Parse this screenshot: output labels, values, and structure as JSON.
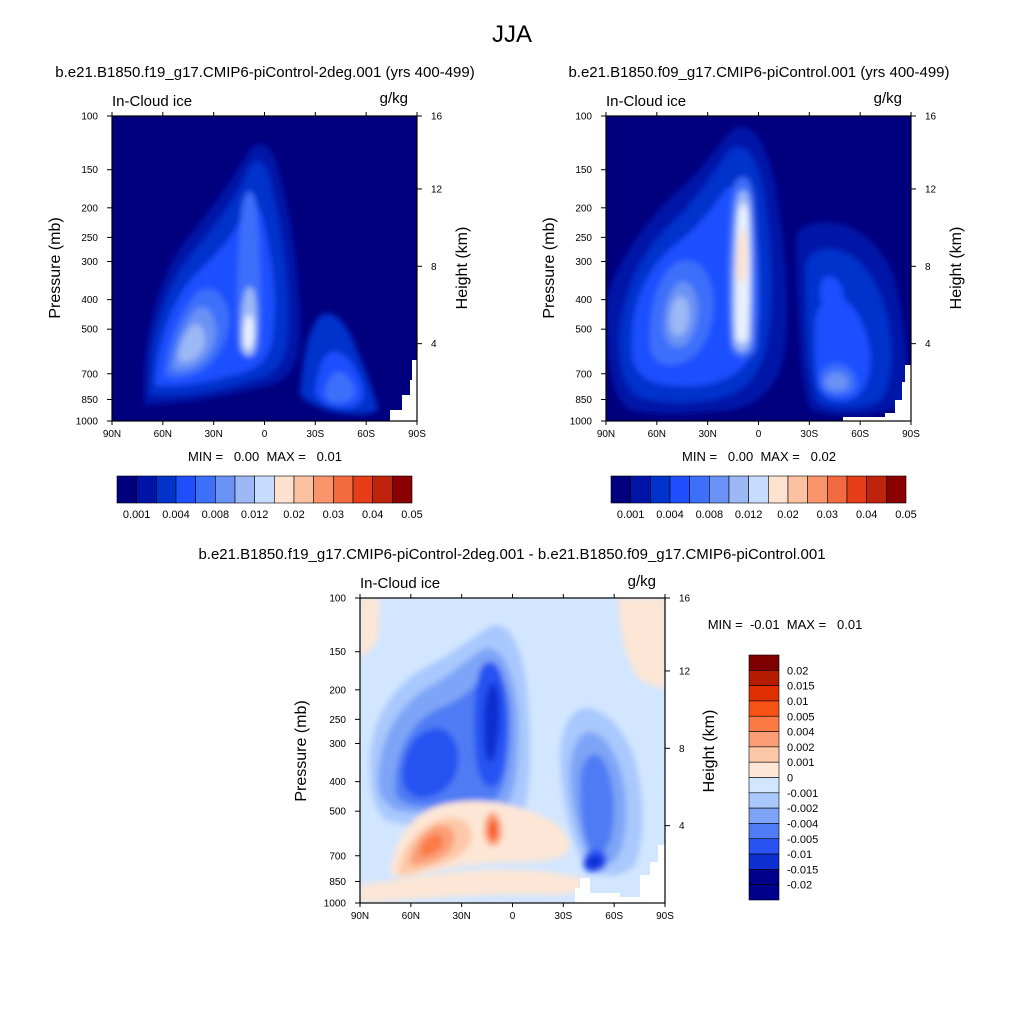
{
  "figure": {
    "title": "JJA"
  },
  "chart_data": [
    {
      "type": "heatmap",
      "title": "b.e21.B1850.f19_g17.CMIP6-piControl-2deg.001 (yrs 400-499)",
      "left_label": "In-Cloud ice",
      "units": "g/kg",
      "ylabel": "Pressure (mb)",
      "ylabel_right": "Height (km)",
      "x_ticks": [
        "90N",
        "60N",
        "30N",
        "0",
        "30S",
        "60S",
        "90S"
      ],
      "y_ticks": [
        "100",
        "150",
        "200",
        "250",
        "300",
        "400",
        "500",
        "700",
        "850",
        "1000"
      ],
      "y_right_ticks": [
        "16",
        "12",
        "8",
        "4"
      ],
      "stats": "MIN =   0.00  MAX =   0.01",
      "colorbar_labels": [
        "0.001",
        "0.004",
        "0.008",
        "0.012",
        "0.02",
        "0.03",
        "0.04",
        "0.05"
      ],
      "blobs": [
        {
          "lat": 45,
          "p": 580,
          "level": 9
        },
        {
          "lat": 12,
          "p": 500,
          "level": 10
        },
        {
          "lat": 12,
          "p": 250,
          "level": 6
        },
        {
          "lat": -45,
          "p": 720,
          "level": 6
        }
      ]
    },
    {
      "type": "heatmap",
      "title": "b.e21.B1850.f09_g17.CMIP6-piControl.001 (yrs 400-499)",
      "left_label": "In-Cloud ice",
      "units": "g/kg",
      "ylabel": "Pressure (mb)",
      "ylabel_right": "Height (km)",
      "x_ticks": [
        "90N",
        "60N",
        "30N",
        "0",
        "30S",
        "60S",
        "90S"
      ],
      "y_ticks": [
        "100",
        "150",
        "200",
        "250",
        "300",
        "400",
        "500",
        "700",
        "850",
        "1000"
      ],
      "y_right_ticks": [
        "16",
        "12",
        "8",
        "4"
      ],
      "stats": "MIN =   0.00  MAX =   0.02",
      "colorbar_labels": [
        "0.001",
        "0.004",
        "0.008",
        "0.012",
        "0.02",
        "0.03",
        "0.04",
        "0.05"
      ],
      "blobs": [
        {
          "lat": 12,
          "p": 250,
          "level": 9
        },
        {
          "lat": 12,
          "p": 450,
          "level": 8
        },
        {
          "lat": 45,
          "p": 380,
          "level": 7
        },
        {
          "lat": -45,
          "p": 720,
          "level": 7
        },
        {
          "lat": -40,
          "p": 380,
          "level": 5
        }
      ]
    },
    {
      "type": "heatmap",
      "title": "b.e21.B1850.f19_g17.CMIP6-piControl-2deg.001 - b.e21.B1850.f09_g17.CMIP6-piControl.001",
      "left_label": "In-Cloud ice",
      "units": "g/kg",
      "ylabel": "Pressure (mb)",
      "ylabel_right": "Height (km)",
      "x_ticks": [
        "90N",
        "60N",
        "30N",
        "0",
        "30S",
        "60S",
        "90S"
      ],
      "y_ticks": [
        "100",
        "150",
        "200",
        "250",
        "300",
        "400",
        "500",
        "700",
        "850",
        "1000"
      ],
      "y_right_ticks": [
        "16",
        "12",
        "8",
        "4"
      ],
      "stats": "MIN =  -0.01  MAX =   0.01",
      "colorbar_labels": [
        "0.02",
        "0.015",
        "0.01",
        "0.005",
        "0.004",
        "0.002",
        "0.001",
        "0",
        "-0.001",
        "-0.002",
        "-0.004",
        "-0.005",
        "-0.01",
        "-0.015",
        "-0.02"
      ]
    }
  ],
  "colors": {
    "seq": [
      "#00007f",
      "#0014a8",
      "#0033cc",
      "#1f4fff",
      "#3d6ffa",
      "#6b92f5",
      "#9cb8f5",
      "#c7dbff",
      "#fde2cf",
      "#fcc1a0",
      "#f9936a",
      "#f46a40",
      "#e43d17",
      "#c0230c",
      "#8b0000"
    ],
    "div": [
      "#7f0000",
      "#b41c00",
      "#de3000",
      "#f75216",
      "#fb7a46",
      "#fb9e76",
      "#fdc8a8",
      "#fde6d5",
      "#d2e6ff",
      "#a9c8fd",
      "#7ea4f7",
      "#4f7cf4",
      "#2853f2",
      "#0d2fd2",
      "#00008b"
    ],
    "plot_bg": "#00007f",
    "diff_bg": "#d2e6ff"
  }
}
